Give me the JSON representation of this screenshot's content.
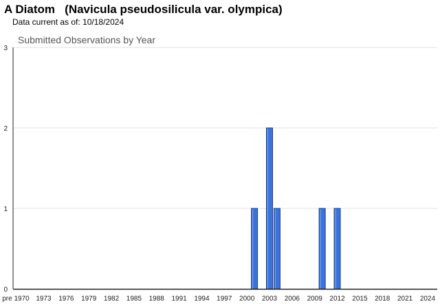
{
  "header": {
    "title": "A Diatom   (Navicula pseudosilicula var. olympica)",
    "data_current_label": "Data current as of:",
    "data_current_date": "10/18/2024"
  },
  "chart_data": {
    "type": "bar",
    "title": "Submitted Observations by Year",
    "xlabel": "",
    "ylabel": "",
    "ylim": [
      0,
      3
    ],
    "y_ticks": [
      0,
      1,
      2,
      3
    ],
    "grid": true,
    "legend": "none",
    "bar_color": "#3b73d9",
    "bar_stroke": "#1a3f8f",
    "x_tick_labels": [
      "pre 1970",
      "1973",
      "1976",
      "1979",
      "1982",
      "1985",
      "1988",
      "1991",
      "1994",
      "1997",
      "2000",
      "2003",
      "2006",
      "2009",
      "2012",
      "2015",
      "2018",
      "2021",
      "2024"
    ],
    "categories": [
      "2001",
      "2003",
      "2004",
      "2010",
      "2012"
    ],
    "values": [
      1,
      2,
      1,
      1,
      1
    ]
  }
}
